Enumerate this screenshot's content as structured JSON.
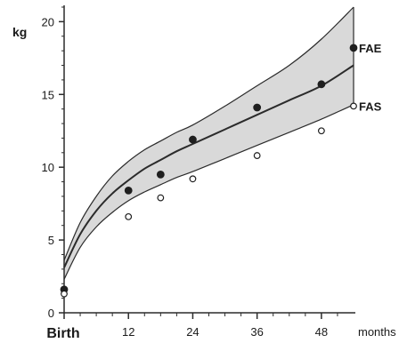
{
  "chart_data": {
    "type": "line",
    "ylabel": "kg",
    "xlabel": "months",
    "xlim": [
      0,
      54
    ],
    "ylim": [
      0,
      21
    ],
    "x_ticks": [
      {
        "value": 0,
        "label": "Birth"
      },
      {
        "value": 12,
        "label": "12"
      },
      {
        "value": 24,
        "label": "24"
      },
      {
        "value": 36,
        "label": "36"
      },
      {
        "value": 48,
        "label": "48"
      }
    ],
    "y_ticks": [
      {
        "value": 0,
        "label": "0"
      },
      {
        "value": 5,
        "label": "5"
      },
      {
        "value": 10,
        "label": "10"
      },
      {
        "value": 15,
        "label": "15"
      },
      {
        "value": 20,
        "label": "20"
      }
    ],
    "band": {
      "x": [
        0,
        3,
        6,
        9,
        12,
        15,
        18,
        21,
        24,
        30,
        36,
        42,
        48,
        54
      ],
      "upper": [
        3.6,
        6.2,
        8.0,
        9.4,
        10.4,
        11.2,
        11.8,
        12.4,
        12.9,
        14.2,
        15.6,
        17.0,
        18.8,
        21.0
      ],
      "lower": [
        2.3,
        4.5,
        5.9,
        6.9,
        7.7,
        8.3,
        8.8,
        9.3,
        9.7,
        10.6,
        11.5,
        12.4,
        13.3,
        14.3
      ]
    },
    "mean": {
      "x": [
        0,
        3,
        6,
        9,
        12,
        15,
        18,
        21,
        24,
        30,
        36,
        42,
        48,
        54
      ],
      "y": [
        3.1,
        5.4,
        7.0,
        8.2,
        9.1,
        9.9,
        10.5,
        11.1,
        11.6,
        12.6,
        13.6,
        14.6,
        15.6,
        17.0
      ]
    },
    "series": [
      {
        "name": "FAE",
        "marker": "filled",
        "points": [
          [
            0,
            1.6
          ],
          [
            12,
            8.4
          ],
          [
            18,
            9.5
          ],
          [
            24,
            11.9
          ],
          [
            36,
            14.1
          ],
          [
            48,
            15.7
          ],
          [
            54,
            18.2
          ]
        ]
      },
      {
        "name": "FAS",
        "marker": "open",
        "points": [
          [
            0,
            1.3
          ],
          [
            12,
            6.6
          ],
          [
            18,
            7.9
          ],
          [
            24,
            9.2
          ],
          [
            36,
            10.8
          ],
          [
            48,
            12.5
          ],
          [
            54,
            14.2
          ]
        ]
      }
    ],
    "colors": {
      "band_fill": "#d9d9d9",
      "line": "#2b2b2b",
      "marker": "#1f1f1f"
    }
  }
}
